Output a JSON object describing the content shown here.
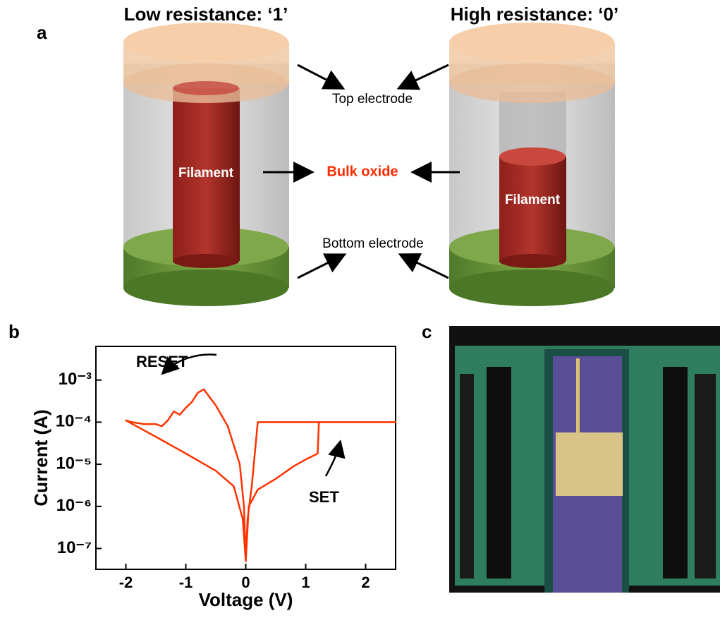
{
  "panel_labels": [
    "a",
    "b",
    "c"
  ],
  "diagram": {
    "left_title": "Low resistance: ‘1’",
    "right_title": "High resistance: ‘0’",
    "top_electrode": "Top electrode",
    "bulk_oxide": "Bulk oxide",
    "bottom_electrode": "Bottom electrode",
    "left_filament": "Filament",
    "right_filament": "Filament"
  },
  "chart_data": {
    "type": "line",
    "x_label": "Voltage (V)",
    "y_label": "Current (A)",
    "annotations": [
      "RESET",
      "SET"
    ],
    "y_log": true,
    "xlim": [
      -2.5,
      2.5
    ],
    "xticks": [
      -2,
      -1,
      0,
      1,
      2
    ],
    "ylim": [
      3.2e-08,
      0.0063
    ],
    "yticks": [
      {
        "value": 1e-07,
        "label": "10⁻⁷"
      },
      {
        "value": 1e-06,
        "label": "10⁻⁶"
      },
      {
        "value": 1e-05,
        "label": "10⁻⁵"
      },
      {
        "value": 0.0001,
        "label": "10⁻⁴"
      },
      {
        "value": 0.001,
        "label": "10⁻³"
      }
    ],
    "series": [
      {
        "color": "#ff3300",
        "x": [
          0,
          0.05,
          0.2,
          0.5,
          0.8,
          1.0,
          1.2,
          1.22,
          1.6,
          2.0,
          2.5,
          0.2,
          0.1,
          0.03,
          0,
          -0.03,
          -0.1,
          -0.3,
          -0.5,
          -0.7,
          -0.8,
          -0.9,
          -1.0,
          -1.1,
          -1.2,
          -1.3,
          -1.4,
          -1.5,
          -1.7,
          -1.9,
          -2.0,
          -1.5,
          -1.0,
          -0.5,
          -0.2,
          -0.05,
          0
        ],
        "values": [
          5e-08,
          1e-06,
          2.5e-06,
          4.5e-06,
          9e-06,
          1.3e-05,
          1.8e-05,
          0.0001,
          0.0001,
          0.0001,
          0.0001,
          0.0001,
          3e-06,
          5e-07,
          5e-08,
          1e-06,
          1e-05,
          8e-05,
          0.00025,
          0.0006,
          0.0005,
          0.0003,
          0.00022,
          0.00015,
          0.00018,
          0.00011,
          8e-05,
          9e-05,
          9e-05,
          0.0001,
          0.00011,
          4.5e-05,
          1.8e-05,
          7e-06,
          3e-06,
          5e-07,
          5e-08
        ]
      }
    ]
  }
}
